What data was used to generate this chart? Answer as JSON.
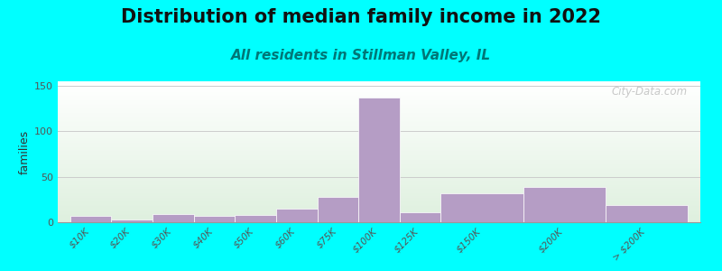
{
  "title": "Distribution of median family income in 2022",
  "subtitle": "All residents in Stillman Valley, IL",
  "ylabel": "families",
  "categories": [
    "$10K",
    "$20K",
    "$30K",
    "$40K",
    "$50K",
    "$60K",
    "$75K",
    "$100K",
    "$125K",
    "$150K",
    "$200K",
    "> $200K"
  ],
  "values": [
    7,
    3,
    9,
    7,
    8,
    15,
    28,
    137,
    11,
    32,
    39,
    19
  ],
  "bar_widths": [
    1,
    1,
    1,
    1,
    1,
    1,
    1,
    1,
    1,
    2,
    2,
    2
  ],
  "bar_lefts": [
    0,
    1,
    2,
    3,
    4,
    5,
    6,
    7,
    8,
    9,
    11,
    13
  ],
  "xlim": [
    -0.3,
    15.3
  ],
  "xtick_positions": [
    0.5,
    1.5,
    2.5,
    3.5,
    4.5,
    5.5,
    6.5,
    7.5,
    8.5,
    10,
    12,
    14
  ],
  "ylim": [
    0,
    155
  ],
  "yticks": [
    0,
    50,
    100,
    150
  ],
  "bar_color": "#b59dc5",
  "background_color": "#00ffff",
  "plot_bg_green": "#ddeedd",
  "plot_bg_white": "#f8fff8",
  "title_fontsize": 15,
  "subtitle_fontsize": 11,
  "subtitle_color": "#007777",
  "ylabel_fontsize": 9,
  "watermark": "City-Data.com",
  "grid_color": "#cccccc"
}
